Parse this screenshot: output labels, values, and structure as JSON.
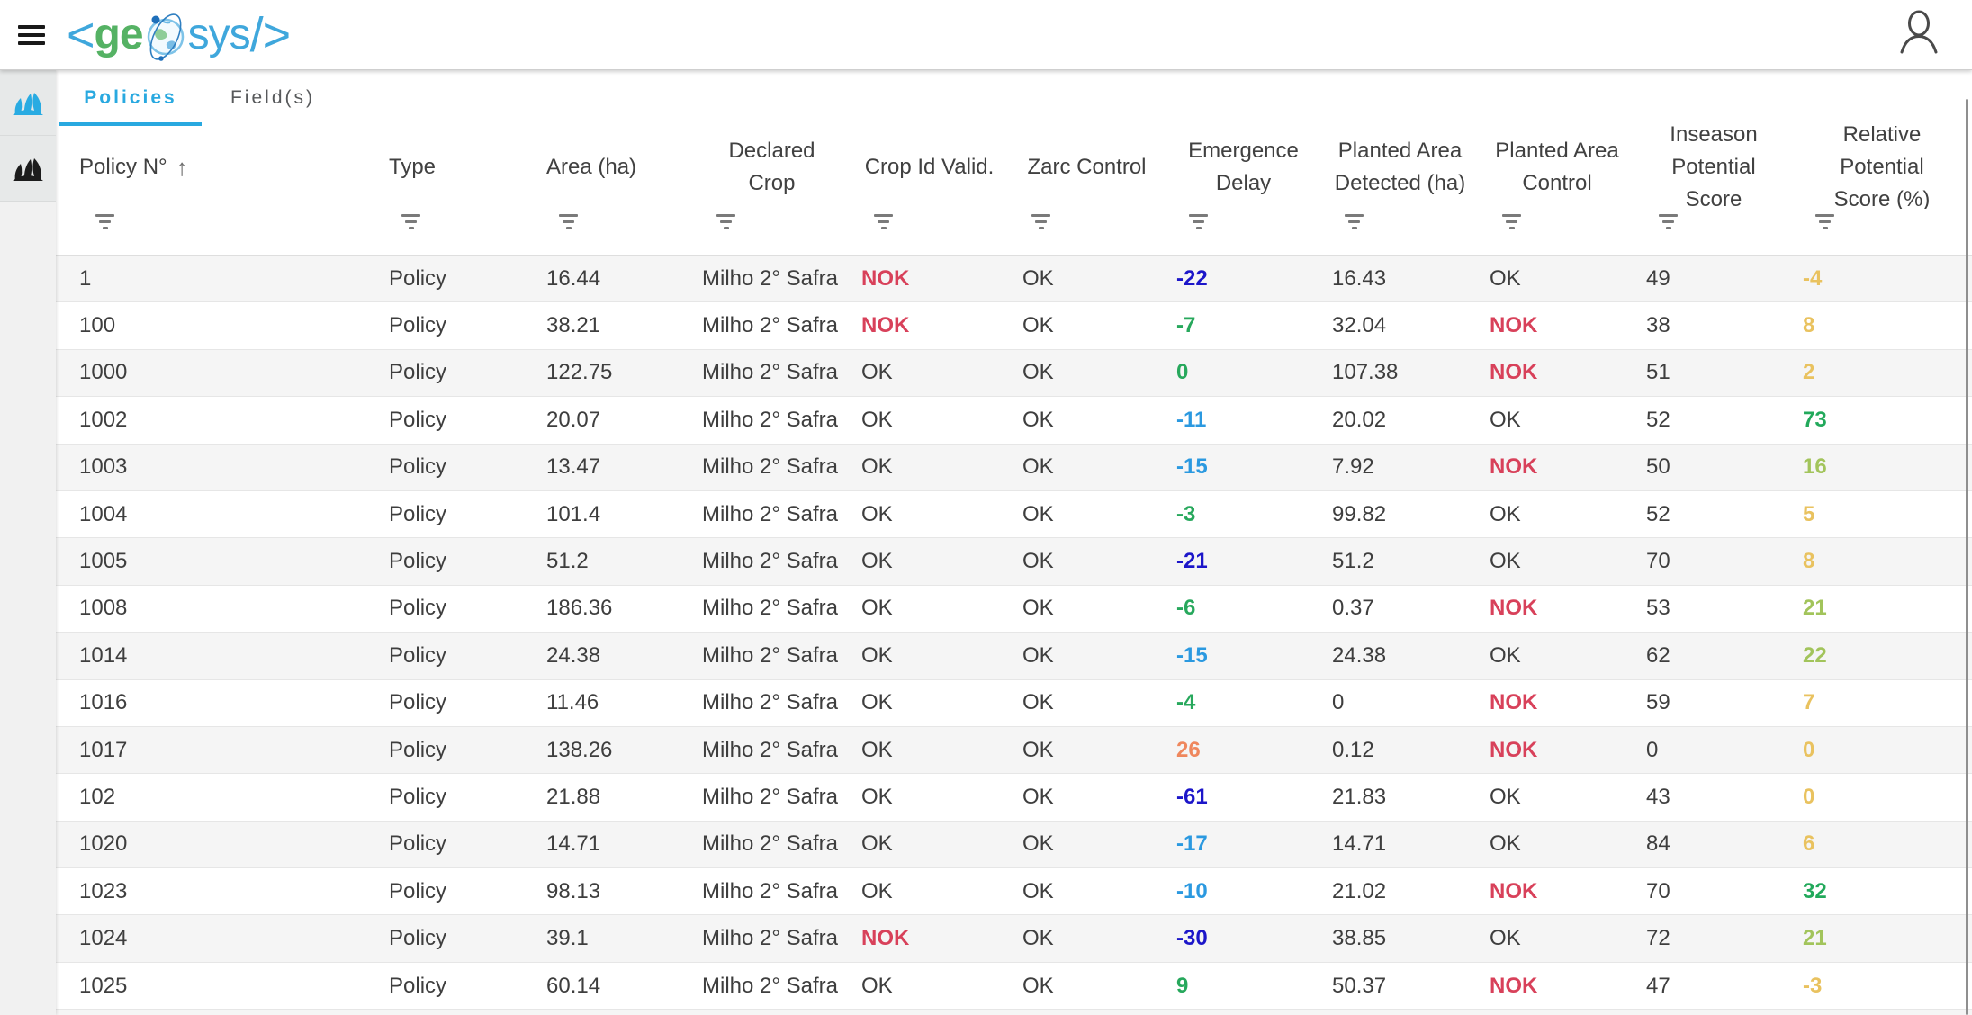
{
  "brand": {
    "angle_open": "<",
    "ge": "ge",
    "sys": "sys",
    "close": "/>"
  },
  "tabs": [
    {
      "label": "Policies",
      "active": true
    },
    {
      "label": "Field(s)",
      "active": false
    }
  ],
  "table": {
    "columns": [
      {
        "label": "Policy N°",
        "sorted": "asc"
      },
      {
        "label": "Type"
      },
      {
        "label": "Area (ha)"
      },
      {
        "label": "Declared\nCrop"
      },
      {
        "label": "Crop Id Valid."
      },
      {
        "label": "Zarc Control"
      },
      {
        "label": "Emergence\nDelay"
      },
      {
        "label": "Planted Area\nDetected (ha)"
      },
      {
        "label": "Planted Area\nControl"
      },
      {
        "label": "Inseason\nPotential\nScore"
      },
      {
        "label": "Relative\nPotential\nScore (%)"
      }
    ],
    "rows": [
      {
        "policy_no": "1",
        "type": "Policy",
        "area_ha": "16.44",
        "declared_crop": "Milho 2° Safra",
        "crop_id_valid": "NOK",
        "zarc_control": "OK",
        "emergence_delay": "-22",
        "emergence_delay_color": "dark-blue",
        "planted_area_detected_ha": "16.43",
        "planted_area_control": "OK",
        "inseason_potential_score": "49",
        "relative_potential_score": "-4",
        "relative_potential_color": "amber"
      },
      {
        "policy_no": "100",
        "type": "Policy",
        "area_ha": "38.21",
        "declared_crop": "Milho 2° Safra",
        "crop_id_valid": "NOK",
        "zarc_control": "OK",
        "emergence_delay": "-7",
        "emergence_delay_color": "green",
        "planted_area_detected_ha": "32.04",
        "planted_area_control": "NOK",
        "inseason_potential_score": "38",
        "relative_potential_score": "8",
        "relative_potential_color": "amber"
      },
      {
        "policy_no": "1000",
        "type": "Policy",
        "area_ha": "122.75",
        "declared_crop": "Milho 2° Safra",
        "crop_id_valid": "OK",
        "zarc_control": "OK",
        "emergence_delay": "0",
        "emergence_delay_color": "green",
        "planted_area_detected_ha": "107.38",
        "planted_area_control": "NOK",
        "inseason_potential_score": "51",
        "relative_potential_score": "2",
        "relative_potential_color": "amber"
      },
      {
        "policy_no": "1002",
        "type": "Policy",
        "area_ha": "20.07",
        "declared_crop": "Milho 2° Safra",
        "crop_id_valid": "OK",
        "zarc_control": "OK",
        "emergence_delay": "-11",
        "emergence_delay_color": "light-blue",
        "planted_area_detected_ha": "20.02",
        "planted_area_control": "OK",
        "inseason_potential_score": "52",
        "relative_potential_score": "73",
        "relative_potential_color": "bright-green"
      },
      {
        "policy_no": "1003",
        "type": "Policy",
        "area_ha": "13.47",
        "declared_crop": "Milho 2° Safra",
        "crop_id_valid": "OK",
        "zarc_control": "OK",
        "emergence_delay": "-15",
        "emergence_delay_color": "light-blue",
        "planted_area_detected_ha": "7.92",
        "planted_area_control": "NOK",
        "inseason_potential_score": "50",
        "relative_potential_score": "16",
        "relative_potential_color": "light-green"
      },
      {
        "policy_no": "1004",
        "type": "Policy",
        "area_ha": "101.4",
        "declared_crop": "Milho 2° Safra",
        "crop_id_valid": "OK",
        "zarc_control": "OK",
        "emergence_delay": "-3",
        "emergence_delay_color": "green",
        "planted_area_detected_ha": "99.82",
        "planted_area_control": "OK",
        "inseason_potential_score": "52",
        "relative_potential_score": "5",
        "relative_potential_color": "amber"
      },
      {
        "policy_no": "1005",
        "type": "Policy",
        "area_ha": "51.2",
        "declared_crop": "Milho 2° Safra",
        "crop_id_valid": "OK",
        "zarc_control": "OK",
        "emergence_delay": "-21",
        "emergence_delay_color": "dark-blue",
        "planted_area_detected_ha": "51.2",
        "planted_area_control": "OK",
        "inseason_potential_score": "70",
        "relative_potential_score": "8",
        "relative_potential_color": "amber"
      },
      {
        "policy_no": "1008",
        "type": "Policy",
        "area_ha": "186.36",
        "declared_crop": "Milho 2° Safra",
        "crop_id_valid": "OK",
        "zarc_control": "OK",
        "emergence_delay": "-6",
        "emergence_delay_color": "green",
        "planted_area_detected_ha": "0.37",
        "planted_area_control": "NOK",
        "inseason_potential_score": "53",
        "relative_potential_score": "21",
        "relative_potential_color": "light-green"
      },
      {
        "policy_no": "1014",
        "type": "Policy",
        "area_ha": "24.38",
        "declared_crop": "Milho 2° Safra",
        "crop_id_valid": "OK",
        "zarc_control": "OK",
        "emergence_delay": "-15",
        "emergence_delay_color": "light-blue",
        "planted_area_detected_ha": "24.38",
        "planted_area_control": "OK",
        "inseason_potential_score": "62",
        "relative_potential_score": "22",
        "relative_potential_color": "light-green"
      },
      {
        "policy_no": "1016",
        "type": "Policy",
        "area_ha": "11.46",
        "declared_crop": "Milho 2° Safra",
        "crop_id_valid": "OK",
        "zarc_control": "OK",
        "emergence_delay": "-4",
        "emergence_delay_color": "green",
        "planted_area_detected_ha": "0",
        "planted_area_control": "NOK",
        "inseason_potential_score": "59",
        "relative_potential_score": "7",
        "relative_potential_color": "amber"
      },
      {
        "policy_no": "1017",
        "type": "Policy",
        "area_ha": "138.26",
        "declared_crop": "Milho 2° Safra",
        "crop_id_valid": "OK",
        "zarc_control": "OK",
        "emergence_delay": "26",
        "emergence_delay_color": "orange",
        "planted_area_detected_ha": "0.12",
        "planted_area_control": "NOK",
        "inseason_potential_score": "0",
        "relative_potential_score": "0",
        "relative_potential_color": "amber"
      },
      {
        "policy_no": "102",
        "type": "Policy",
        "area_ha": "21.88",
        "declared_crop": "Milho 2° Safra",
        "crop_id_valid": "OK",
        "zarc_control": "OK",
        "emergence_delay": "-61",
        "emergence_delay_color": "dark-blue",
        "planted_area_detected_ha": "21.83",
        "planted_area_control": "OK",
        "inseason_potential_score": "43",
        "relative_potential_score": "0",
        "relative_potential_color": "amber"
      },
      {
        "policy_no": "1020",
        "type": "Policy",
        "area_ha": "14.71",
        "declared_crop": "Milho 2° Safra",
        "crop_id_valid": "OK",
        "zarc_control": "OK",
        "emergence_delay": "-17",
        "emergence_delay_color": "light-blue",
        "planted_area_detected_ha": "14.71",
        "planted_area_control": "OK",
        "inseason_potential_score": "84",
        "relative_potential_score": "6",
        "relative_potential_color": "amber"
      },
      {
        "policy_no": "1023",
        "type": "Policy",
        "area_ha": "98.13",
        "declared_crop": "Milho 2° Safra",
        "crop_id_valid": "OK",
        "zarc_control": "OK",
        "emergence_delay": "-10",
        "emergence_delay_color": "light-blue",
        "planted_area_detected_ha": "21.02",
        "planted_area_control": "NOK",
        "inseason_potential_score": "70",
        "relative_potential_score": "32",
        "relative_potential_color": "bright-green"
      },
      {
        "policy_no": "1024",
        "type": "Policy",
        "area_ha": "39.1",
        "declared_crop": "Milho 2° Safra",
        "crop_id_valid": "NOK",
        "zarc_control": "OK",
        "emergence_delay": "-30",
        "emergence_delay_color": "dark-blue",
        "planted_area_detected_ha": "38.85",
        "planted_area_control": "OK",
        "inseason_potential_score": "72",
        "relative_potential_score": "21",
        "relative_potential_color": "light-green"
      },
      {
        "policy_no": "1025",
        "type": "Policy",
        "area_ha": "60.14",
        "declared_crop": "Milho 2° Safra",
        "crop_id_valid": "OK",
        "zarc_control": "OK",
        "emergence_delay": "9",
        "emergence_delay_color": "green",
        "planted_area_detected_ha": "50.37",
        "planted_area_control": "NOK",
        "inseason_potential_score": "47",
        "relative_potential_score": "-3",
        "relative_potential_color": "amber"
      }
    ]
  },
  "colors": {
    "accent_blue": "#29a9e0",
    "brand_green": "#55b264",
    "brand_blue": "#3fa7dc",
    "nok_red": "#d8415a",
    "value_dark_blue": "#1c16c9",
    "value_green": "#27a85c",
    "value_light_blue": "#2b99e0",
    "value_orange": "#ef875d",
    "value_amber": "#e9c25f",
    "value_light_green": "#a2c45b",
    "value_bright_green": "#22a95b"
  }
}
